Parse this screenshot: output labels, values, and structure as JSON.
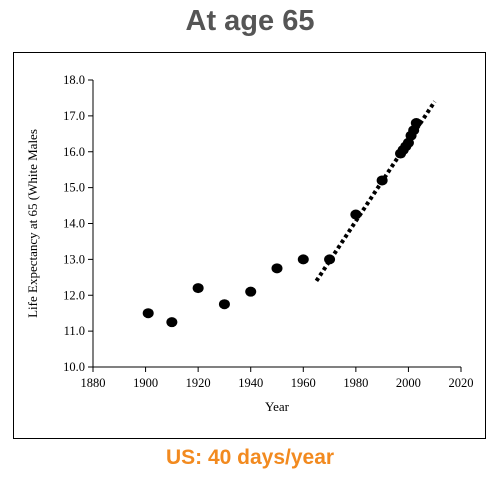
{
  "header": {
    "title": "At age 65"
  },
  "footer": {
    "caption": "US: 40 days/year"
  },
  "colors": {
    "title": "#555555",
    "caption": "#f28a1f",
    "marker": "#000000"
  },
  "chart_data": {
    "type": "scatter",
    "title": "",
    "xlabel": "Year",
    "ylabel": "Life Expectancy at 65 (White Males",
    "xlim": [
      1880,
      2020
    ],
    "ylim": [
      10.0,
      18.0
    ],
    "xticks": [
      1880,
      1900,
      1920,
      1940,
      1960,
      1980,
      2000,
      2020
    ],
    "yticks": [
      "10.0",
      "11.0",
      "12.0",
      "13.0",
      "14.0",
      "15.0",
      "16.0",
      "17.0",
      "18.0"
    ],
    "grid": false,
    "legend": "none",
    "points": [
      {
        "x": 1901,
        "y": 11.5
      },
      {
        "x": 1910,
        "y": 11.25
      },
      {
        "x": 1920,
        "y": 12.2
      },
      {
        "x": 1930,
        "y": 11.75
      },
      {
        "x": 1940,
        "y": 12.1
      },
      {
        "x": 1950,
        "y": 12.75
      },
      {
        "x": 1960,
        "y": 13.0
      },
      {
        "x": 1970,
        "y": 13.0
      },
      {
        "x": 1980,
        "y": 14.25
      },
      {
        "x": 1990,
        "y": 15.2
      },
      {
        "x": 1997,
        "y": 15.95
      },
      {
        "x": 1998,
        "y": 16.05
      },
      {
        "x": 1999,
        "y": 16.15
      },
      {
        "x": 2000,
        "y": 16.25
      },
      {
        "x": 2001,
        "y": 16.45
      },
      {
        "x": 2002,
        "y": 16.6
      },
      {
        "x": 2003,
        "y": 16.8
      }
    ],
    "trendline": {
      "style": "dotted",
      "x": [
        1965,
        2010
      ],
      "y": [
        12.4,
        17.4
      ]
    }
  }
}
